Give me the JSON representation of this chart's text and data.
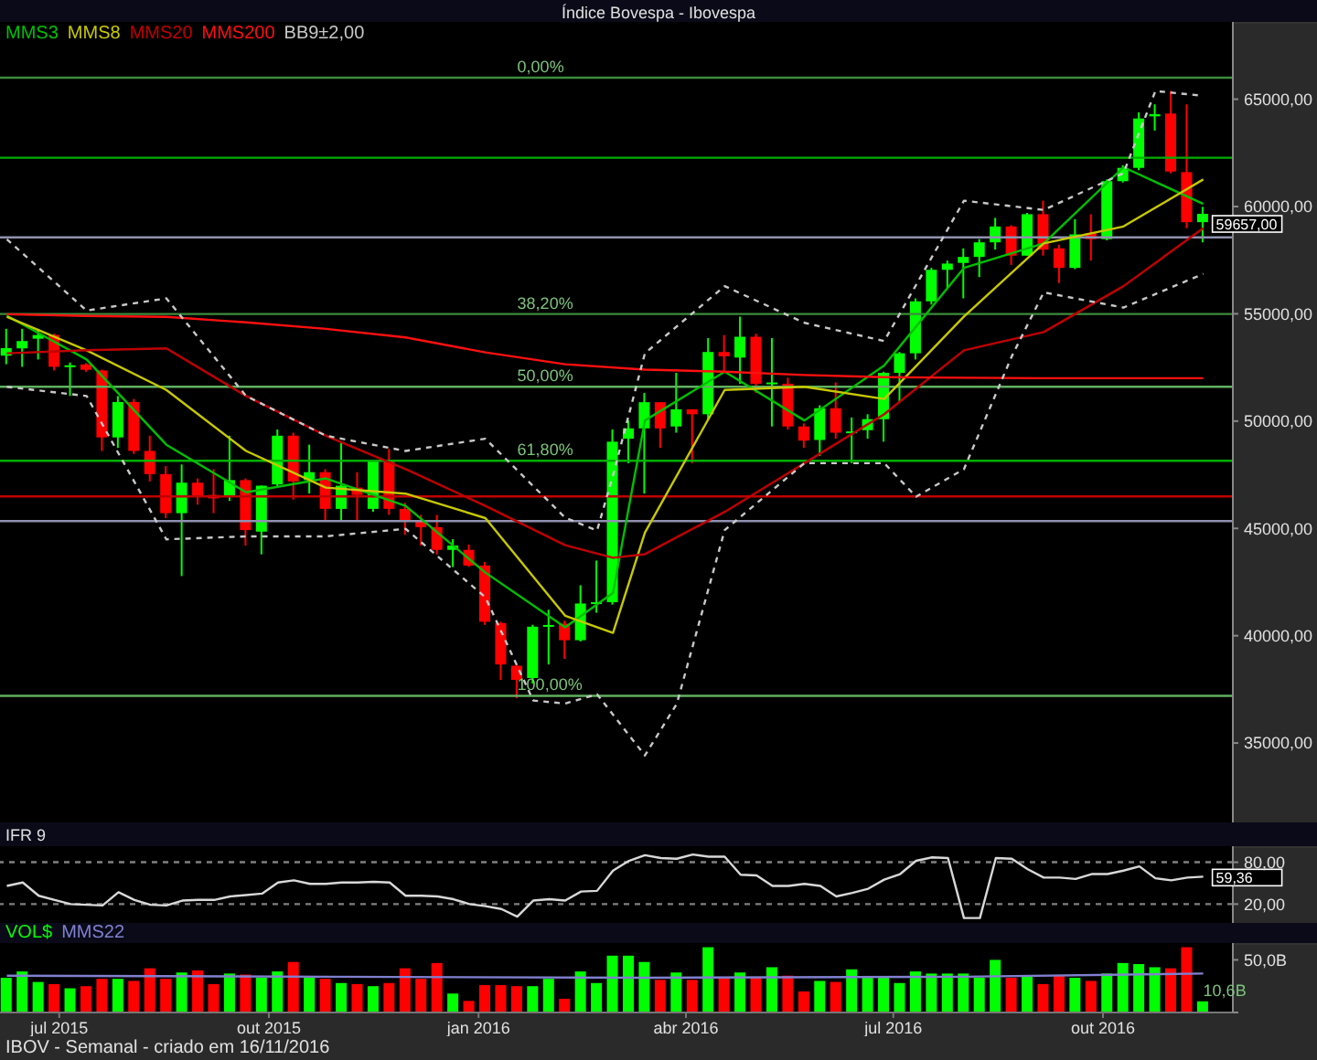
{
  "chart_data": [
    {
      "type": "candlestick",
      "title": "Índice Bovespa - Ibovespa",
      "x": [
        "2015-06-08",
        "2015-06-15",
        "2015-06-22",
        "2015-06-29",
        "2015-07-06",
        "2015-07-13",
        "2015-07-20",
        "2015-07-27",
        "2015-08-03",
        "2015-08-10",
        "2015-08-17",
        "2015-08-24",
        "2015-08-31",
        "2015-09-07",
        "2015-09-14",
        "2015-09-21",
        "2015-09-28",
        "2015-10-05",
        "2015-10-12",
        "2015-10-19",
        "2015-10-26",
        "2015-11-02",
        "2015-11-09",
        "2015-11-16",
        "2015-11-23",
        "2015-11-30",
        "2015-12-07",
        "2015-12-14",
        "2015-12-21",
        "2015-12-28",
        "2016-01-04",
        "2016-01-11",
        "2016-01-18",
        "2016-01-25",
        "2016-02-01",
        "2016-02-08",
        "2016-02-15",
        "2016-02-22",
        "2016-02-29",
        "2016-03-07",
        "2016-03-14",
        "2016-03-21",
        "2016-03-28",
        "2016-04-04",
        "2016-04-11",
        "2016-04-18",
        "2016-04-25",
        "2016-05-02",
        "2016-05-09",
        "2016-05-16",
        "2016-05-23",
        "2016-05-30",
        "2016-06-06",
        "2016-06-13",
        "2016-06-20",
        "2016-06-27",
        "2016-07-04",
        "2016-07-11",
        "2016-07-18",
        "2016-07-25",
        "2016-08-01",
        "2016-08-08",
        "2016-08-15",
        "2016-08-22",
        "2016-08-29",
        "2016-09-05",
        "2016-09-12",
        "2016-09-19",
        "2016-09-26",
        "2016-10-03",
        "2016-10-10",
        "2016-10-17",
        "2016-10-24",
        "2016-10-31",
        "2016-11-07",
        "2016-11-14"
      ],
      "ohlc": [
        [
          53050,
          54300,
          52650,
          53400
        ],
        [
          53390,
          54300,
          52530,
          53730
        ],
        [
          53840,
          54300,
          52870,
          54010
        ],
        [
          54010,
          54070,
          52360,
          52530
        ],
        [
          52560,
          52730,
          51170,
          52600
        ],
        [
          52640,
          52700,
          52300,
          52390
        ],
        [
          52360,
          52400,
          48610,
          49240
        ],
        [
          49240,
          51170,
          48750,
          50890
        ],
        [
          50890,
          51030,
          48470,
          48610
        ],
        [
          48610,
          49320,
          47190,
          47530
        ],
        [
          47530,
          47900,
          45480,
          45710
        ],
        [
          45710,
          47980,
          42780,
          47130
        ],
        [
          47130,
          47330,
          46110,
          46480
        ],
        [
          46560,
          47760,
          45710,
          46400
        ],
        [
          46480,
          49320,
          46280,
          47250
        ],
        [
          47250,
          47330,
          44200,
          44920
        ],
        [
          44850,
          47000,
          43790,
          46990
        ],
        [
          47050,
          49610,
          46900,
          49320
        ],
        [
          49320,
          49460,
          46340,
          47190
        ],
        [
          47250,
          48900,
          46620,
          47620
        ],
        [
          47620,
          47760,
          45340,
          45910
        ],
        [
          45910,
          49040,
          45340,
          46990
        ],
        [
          46900,
          47620,
          45340,
          46560
        ],
        [
          45910,
          48180,
          45770,
          48130
        ],
        [
          48130,
          48700,
          45630,
          45910
        ],
        [
          45910,
          46190,
          44700,
          45340
        ],
        [
          45340,
          45630,
          44200,
          45060
        ],
        [
          45060,
          45630,
          43790,
          44000
        ],
        [
          44000,
          44500,
          43200,
          44200
        ],
        [
          44000,
          44250,
          43210,
          43270
        ],
        [
          43270,
          43440,
          40510,
          40650
        ],
        [
          40590,
          40650,
          37940,
          38660
        ],
        [
          38600,
          38660,
          37090,
          37940
        ],
        [
          38030,
          40510,
          37770,
          40420
        ],
        [
          40420,
          41210,
          38660,
          40500
        ],
        [
          40560,
          40700,
          38920,
          39790
        ],
        [
          39790,
          42350,
          39730,
          41500
        ],
        [
          41500,
          43500,
          41070,
          41560
        ],
        [
          41560,
          49610,
          41450,
          49040
        ],
        [
          49180,
          50030,
          48040,
          49660
        ],
        [
          49660,
          51310,
          46620,
          50880
        ],
        [
          50880,
          50880,
          48750,
          49660
        ],
        [
          49750,
          52250,
          49460,
          50550
        ],
        [
          50550,
          50550,
          48040,
          50320
        ],
        [
          50320,
          53870,
          50030,
          53220
        ],
        [
          53220,
          54010,
          52310,
          53020
        ],
        [
          52960,
          54870,
          51740,
          53930
        ],
        [
          53930,
          54070,
          51310,
          51740
        ],
        [
          51740,
          53870,
          49750,
          51800
        ],
        [
          51740,
          52020,
          49610,
          49750
        ],
        [
          49750,
          49890,
          48750,
          49090
        ],
        [
          49120,
          50740,
          48380,
          50600
        ],
        [
          50600,
          51800,
          49180,
          49460
        ],
        [
          49470,
          50170,
          48040,
          49520
        ],
        [
          49580,
          50320,
          49180,
          50090
        ],
        [
          50090,
          52300,
          49040,
          52250
        ],
        [
          52250,
          53220,
          50880,
          53160
        ],
        [
          53160,
          55720,
          52870,
          55580
        ],
        [
          55580,
          57140,
          55430,
          57050
        ],
        [
          57050,
          57480,
          56150,
          57340
        ],
        [
          57370,
          58050,
          55720,
          57650
        ],
        [
          57650,
          58480,
          56710,
          58330
        ],
        [
          58330,
          59470,
          57990,
          59070
        ],
        [
          59070,
          59130,
          57280,
          57710
        ],
        [
          57710,
          59700,
          57710,
          59640
        ],
        [
          59640,
          60270,
          57710,
          57990
        ],
        [
          58050,
          58220,
          56430,
          57140
        ],
        [
          57140,
          59410,
          57080,
          58700
        ],
        [
          58760,
          59640,
          57480,
          58480
        ],
        [
          58480,
          61260,
          58420,
          61180
        ],
        [
          61180,
          61920,
          61120,
          61800
        ],
        [
          61800,
          64390,
          61690,
          64100
        ],
        [
          64200,
          64760,
          63540,
          64300
        ],
        [
          64330,
          65380,
          61550,
          61630
        ],
        [
          61600,
          64760,
          58990,
          59270
        ],
        [
          59270,
          59980,
          58330,
          59657
        ]
      ],
      "colors": [
        "#00ff00",
        "#00ff00",
        "#00ff00",
        "#ff0000",
        "#00ff00",
        "#ff0000",
        "#ff0000",
        "#00ff00",
        "#ff0000",
        "#ff0000",
        "#ff0000",
        "#00ff00",
        "#ff0000",
        "#ff0000",
        "#00ff00",
        "#ff0000",
        "#00ff00",
        "#00ff00",
        "#ff0000",
        "#00ff00",
        "#ff0000",
        "#00ff00",
        "#ff0000",
        "#00ff00",
        "#ff0000",
        "#ff0000",
        "#ff0000",
        "#ff0000",
        "#00ff00",
        "#ff0000",
        "#ff0000",
        "#ff0000",
        "#ff0000",
        "#00ff00",
        "#00ff00",
        "#ff0000",
        "#00ff00",
        "#00ff00",
        "#00ff00",
        "#00ff00",
        "#00ff00",
        "#ff0000",
        "#00ff00",
        "#ff0000",
        "#00ff00",
        "#ff0000",
        "#00ff00",
        "#ff0000",
        "#00ff00",
        "#ff0000",
        "#ff0000",
        "#00ff00",
        "#ff0000",
        "#00ff00",
        "#00ff00",
        "#00ff00",
        "#00ff00",
        "#00ff00",
        "#00ff00",
        "#00ff00",
        "#00ff00",
        "#00ff00",
        "#00ff00",
        "#ff0000",
        "#00ff00",
        "#ff0000",
        "#ff0000",
        "#00ff00",
        "#ff0000",
        "#00ff00",
        "#00ff00",
        "#00ff00",
        "#00ff00",
        "#ff0000",
        "#ff0000",
        "#00ff00"
      ],
      "series": [
        {
          "type": "line",
          "name": "MMS3",
          "color": "#00c000",
          "x": [
            "2015-06-08",
            "2015-07-13",
            "2015-08-17",
            "2015-09-21",
            "2015-10-26",
            "2015-11-30",
            "2016-01-04",
            "2016-02-08",
            "2016-02-29",
            "2016-03-14",
            "2016-04-18",
            "2016-05-23",
            "2016-06-27",
            "2016-08-01",
            "2016-09-05",
            "2016-10-10",
            "2016-11-14"
          ],
          "values": [
            54910,
            52870,
            48900,
            46680,
            47330,
            46050,
            42940,
            40390,
            42000,
            50030,
            52300,
            50030,
            52590,
            57140,
            58280,
            61830,
            60120
          ]
        },
        {
          "type": "line",
          "name": "MMS8",
          "color": "#c8c800",
          "x": [
            "2015-06-08",
            "2015-07-13",
            "2015-08-17",
            "2015-09-21",
            "2015-10-26",
            "2015-11-30",
            "2016-01-04",
            "2016-02-08",
            "2016-02-29",
            "2016-03-14",
            "2016-04-18",
            "2016-05-23",
            "2016-06-27",
            "2016-08-01",
            "2016-09-05",
            "2016-10-10",
            "2016-11-14"
          ],
          "values": [
            54860,
            53300,
            51450,
            48610,
            46900,
            46620,
            45480,
            40930,
            40130,
            44800,
            51450,
            51600,
            51030,
            54870,
            58280,
            59070,
            61260
          ]
        },
        {
          "type": "line",
          "name": "MMS20",
          "color": "#c00000",
          "x": [
            "2015-06-08",
            "2015-07-13",
            "2015-08-17",
            "2015-09-21",
            "2015-10-26",
            "2015-11-30",
            "2016-01-04",
            "2016-02-08",
            "2016-02-29",
            "2016-03-14",
            "2016-04-18",
            "2016-05-23",
            "2016-06-27",
            "2016-08-01",
            "2016-09-05",
            "2016-10-10",
            "2016-11-14"
          ],
          "values": [
            53160,
            53300,
            53390,
            51170,
            49320,
            47760,
            46050,
            44220,
            43630,
            43800,
            45770,
            48040,
            50320,
            53300,
            54150,
            56290,
            58990
          ]
        },
        {
          "type": "line",
          "name": "MMS200",
          "color": "#ff1010",
          "x": [
            "2015-06-08",
            "2015-07-13",
            "2015-08-17",
            "2015-09-21",
            "2015-10-26",
            "2015-11-30",
            "2016-01-04",
            "2016-02-08",
            "2016-03-14",
            "2016-04-18",
            "2016-05-23",
            "2016-06-27",
            "2016-08-01",
            "2016-09-05",
            "2016-10-10",
            "2016-11-14"
          ],
          "values": [
            54980,
            54900,
            54860,
            54600,
            54300,
            53900,
            53200,
            52650,
            52400,
            52300,
            52150,
            52050,
            52020,
            52000,
            52000,
            52000
          ]
        },
        {
          "type": "line",
          "name": "BB9±2,00",
          "color": "#c8c8c8",
          "line_style": "dashed",
          "x": [
            "2015-06-08",
            "2015-07-13",
            "2015-08-17",
            "2015-09-21",
            "2015-10-26",
            "2015-11-30",
            "2016-01-04",
            "2016-02-08",
            "2016-02-22",
            "2016-02-29",
            "2016-03-14",
            "2016-04-18",
            "2016-05-23",
            "2016-06-27",
            "2016-08-01",
            "2016-09-05",
            "2016-10-10",
            "2016-10-24",
            "2016-11-14"
          ],
          "values": [
            58470,
            55150,
            55720,
            51170,
            49320,
            48610,
            49180,
            45500,
            44900,
            47470,
            53160,
            56290,
            54580,
            53730,
            60270,
            59840,
            61550,
            65380,
            65160
          ]
        },
        {
          "type": "line",
          "color": "#c8c8c8",
          "line_style": "dashed",
          "x": [
            "2015-06-08",
            "2015-07-13",
            "2015-08-17",
            "2015-09-21",
            "2015-10-26",
            "2015-11-30",
            "2016-01-04",
            "2016-01-25",
            "2016-02-08",
            "2016-02-22",
            "2016-03-14",
            "2016-03-28",
            "2016-04-18",
            "2016-05-23",
            "2016-06-27",
            "2016-07-11",
            "2016-08-01",
            "2016-08-22",
            "2016-09-05",
            "2016-10-10",
            "2016-11-14"
          ],
          "values": [
            51600,
            51170,
            44490,
            44630,
            44630,
            44980,
            41790,
            36980,
            36840,
            37270,
            34420,
            36830,
            44920,
            48040,
            48040,
            46480,
            47760,
            53020,
            56000,
            55290,
            56860
          ]
        }
      ],
      "xlim": [
        "2015-06-05",
        "2016-11-27"
      ],
      "ylim": [
        31300,
        68600
      ],
      "yticks": [
        {
          "value": 35000,
          "label": "35000,00"
        },
        {
          "value": 40000,
          "label": "40000,00"
        },
        {
          "value": 45000,
          "label": "45000,00"
        },
        {
          "value": 50000,
          "label": "50000,00"
        },
        {
          "value": 55000,
          "label": "55000,00"
        },
        {
          "value": 60000,
          "label": "60000,00"
        },
        {
          "value": 65000,
          "label": "65000,00"
        }
      ],
      "tick_labels": "y",
      "legend": "top left",
      "ref_lines": [
        {
          "axis": "y",
          "value": 66000,
          "label": null,
          "color": "#3c8c3c"
        },
        {
          "axis": "y",
          "value": 62270,
          "label": null,
          "color": "#00b000"
        },
        {
          "axis": "y",
          "value": 58560,
          "label": null,
          "color": "#9090b0"
        },
        {
          "axis": "y",
          "value": 54990,
          "label": null,
          "color": "#3c8c3c"
        },
        {
          "axis": "y",
          "value": 51600,
          "label": null,
          "color": "#60b060"
        },
        {
          "axis": "y",
          "value": 48150,
          "label": null,
          "color": "#00b000"
        },
        {
          "axis": "y",
          "value": 46490,
          "label": null,
          "color": "#c00000"
        },
        {
          "axis": "y",
          "value": 45340,
          "label": null,
          "color": "#9090b0"
        },
        {
          "axis": "y",
          "value": 37200,
          "label": null,
          "color": "#60b060"
        }
      ],
      "value_labels": [
        null,
        null,
        null,
        null,
        null,
        null,
        null,
        null,
        null,
        null,
        null,
        null,
        null,
        null,
        null,
        null,
        null,
        null,
        null,
        null,
        null,
        null,
        null,
        null,
        null,
        null,
        null,
        null,
        null,
        null,
        null,
        null,
        null,
        null,
        null,
        null,
        null,
        null,
        null,
        null,
        null,
        null,
        null,
        null,
        null,
        null,
        null,
        null,
        null,
        null,
        null,
        null,
        null,
        null,
        null,
        null,
        null,
        null,
        null,
        null,
        null,
        null,
        null,
        null,
        null,
        null,
        null,
        null,
        null,
        null,
        null,
        null,
        null,
        null,
        null,
        "59657,00"
      ],
      "annotations": [
        {
          "text": "0,00%",
          "x": "2016-01-18",
          "y": 66000
        },
        {
          "text": "38,20%",
          "x": "2016-01-18",
          "y": 54990
        },
        {
          "text": "50,00%",
          "x": "2016-01-18",
          "y": 51600
        },
        {
          "text": "61,80%",
          "x": "2016-01-18",
          "y": 48150
        },
        {
          "text": "100,00%",
          "x": "2016-01-18",
          "y": 37200
        }
      ]
    },
    {
      "type": "line",
      "title": "IFR 9",
      "x": [
        "2015-06-08",
        "2015-06-15",
        "2015-06-22",
        "2015-06-29",
        "2015-07-06",
        "2015-07-13",
        "2015-07-20",
        "2015-07-27",
        "2015-08-03",
        "2015-08-10",
        "2015-08-17",
        "2015-08-24",
        "2015-08-31",
        "2015-09-07",
        "2015-09-14",
        "2015-09-21",
        "2015-09-28",
        "2015-10-05",
        "2015-10-12",
        "2015-10-19",
        "2015-10-26",
        "2015-11-02",
        "2015-11-09",
        "2015-11-16",
        "2015-11-23",
        "2015-11-30",
        "2015-12-07",
        "2015-12-14",
        "2015-12-21",
        "2015-12-28",
        "2016-01-04",
        "2016-01-11",
        "2016-01-18",
        "2016-01-25",
        "2016-02-01",
        "2016-02-08",
        "2016-02-15",
        "2016-02-22",
        "2016-02-29",
        "2016-03-07",
        "2016-03-14",
        "2016-03-21",
        "2016-03-28",
        "2016-04-04",
        "2016-04-11",
        "2016-04-18",
        "2016-04-25",
        "2016-05-02",
        "2016-05-09",
        "2016-05-16",
        "2016-05-23",
        "2016-05-30",
        "2016-06-06",
        "2016-06-13",
        "2016-06-20",
        "2016-06-27",
        "2016-07-04",
        "2016-07-11",
        "2016-07-18",
        "2016-07-25",
        "2016-08-01",
        "2016-08-08",
        "2016-08-15",
        "2016-08-22",
        "2016-08-29",
        "2016-09-05",
        "2016-09-12",
        "2016-09-19",
        "2016-09-26",
        "2016-10-03",
        "2016-10-10",
        "2016-10-17",
        "2016-10-24",
        "2016-10-31",
        "2016-11-07",
        "2016-11-14"
      ],
      "series": [
        {
          "color": "#d8d8d8",
          "value_labels": [
            null,
            null,
            null,
            null,
            null,
            null,
            null,
            null,
            null,
            null,
            null,
            null,
            null,
            null,
            null,
            null,
            null,
            null,
            null,
            null,
            null,
            null,
            null,
            null,
            null,
            null,
            null,
            null,
            null,
            null,
            null,
            null,
            null,
            null,
            null,
            null,
            null,
            null,
            null,
            null,
            null,
            null,
            null,
            null,
            null,
            null,
            null,
            null,
            null,
            null,
            null,
            null,
            null,
            null,
            null,
            null,
            null,
            null,
            null,
            null,
            null,
            null,
            null,
            null,
            null,
            null,
            null,
            null,
            null,
            null,
            null,
            null,
            null,
            null,
            null,
            "59,36"
          ],
          "values": [
            46,
            51,
            32,
            26,
            20,
            19,
            18,
            37,
            26,
            19,
            18,
            25,
            26,
            26,
            31,
            33,
            35,
            51,
            54,
            49,
            49,
            51,
            51,
            52,
            51,
            32,
            32,
            31,
            27,
            20,
            17,
            13,
            2,
            25,
            27,
            25,
            38,
            39,
            68,
            82,
            90,
            86,
            85,
            91,
            88,
            88,
            62,
            61,
            46,
            46,
            49,
            46,
            31,
            36,
            42,
            55,
            63,
            82,
            87,
            86,
            0,
            0,
            86,
            85,
            70,
            58,
            58,
            56,
            63,
            63,
            68,
            74,
            57,
            54,
            58,
            59.36
          ]
        }
      ],
      "xlim": [
        "2015-06-05",
        "2016-11-27"
      ],
      "ylim": [
        -7,
        103
      ],
      "yticks": [
        {
          "value": 80,
          "label": "80,00"
        },
        {
          "value": 20,
          "label": "20,00"
        }
      ],
      "tick_labels": "y",
      "ref_lines": [
        {
          "axis": "y",
          "value": 80,
          "label": null,
          "color": "#808080",
          "line_style": "dashed"
        },
        {
          "axis": "y",
          "value": 20,
          "label": null,
          "color": "#808080",
          "line_style": "dashed"
        }
      ]
    },
    {
      "type": "bar",
      "x": [
        "2015-06-08",
        "2015-06-15",
        "2015-06-22",
        "2015-06-29",
        "2015-07-06",
        "2015-07-13",
        "2015-07-20",
        "2015-07-27",
        "2015-08-03",
        "2015-08-10",
        "2015-08-17",
        "2015-08-24",
        "2015-08-31",
        "2015-09-07",
        "2015-09-14",
        "2015-09-21",
        "2015-09-28",
        "2015-10-05",
        "2015-10-12",
        "2015-10-19",
        "2015-10-26",
        "2015-11-02",
        "2015-11-09",
        "2015-11-16",
        "2015-11-23",
        "2015-11-30",
        "2015-12-07",
        "2015-12-14",
        "2015-12-21",
        "2015-12-28",
        "2016-01-04",
        "2016-01-11",
        "2016-01-18",
        "2016-01-25",
        "2016-02-01",
        "2016-02-08",
        "2016-02-15",
        "2016-02-22",
        "2016-02-29",
        "2016-03-07",
        "2016-03-14",
        "2016-03-21",
        "2016-03-28",
        "2016-04-04",
        "2016-04-11",
        "2016-04-18",
        "2016-04-25",
        "2016-05-02",
        "2016-05-09",
        "2016-05-16",
        "2016-05-23",
        "2016-05-30",
        "2016-06-06",
        "2016-06-13",
        "2016-06-20",
        "2016-06-27",
        "2016-07-04",
        "2016-07-11",
        "2016-07-18",
        "2016-07-25",
        "2016-08-01",
        "2016-08-08",
        "2016-08-15",
        "2016-08-22",
        "2016-08-29",
        "2016-09-05",
        "2016-09-12",
        "2016-09-19",
        "2016-09-26",
        "2016-10-03",
        "2016-10-10",
        "2016-10-17",
        "2016-10-24",
        "2016-10-31",
        "2016-11-07",
        "2016-11-14"
      ],
      "series": [
        {
          "name": "VOL$",
          "colors": [
            "#00ff00",
            "#00ff00",
            "#00ff00",
            "#ff0000",
            "#00ff00",
            "#ff0000",
            "#ff0000",
            "#00ff00",
            "#ff0000",
            "#ff0000",
            "#ff0000",
            "#00ff00",
            "#ff0000",
            "#ff0000",
            "#00ff00",
            "#ff0000",
            "#00ff00",
            "#00ff00",
            "#ff0000",
            "#00ff00",
            "#ff0000",
            "#00ff00",
            "#ff0000",
            "#00ff00",
            "#ff0000",
            "#ff0000",
            "#ff0000",
            "#ff0000",
            "#00ff00",
            "#ff0000",
            "#ff0000",
            "#ff0000",
            "#ff0000",
            "#00ff00",
            "#00ff00",
            "#ff0000",
            "#00ff00",
            "#00ff00",
            "#00ff00",
            "#00ff00",
            "#00ff00",
            "#ff0000",
            "#00ff00",
            "#ff0000",
            "#00ff00",
            "#ff0000",
            "#00ff00",
            "#ff0000",
            "#00ff00",
            "#ff0000",
            "#ff0000",
            "#00ff00",
            "#ff0000",
            "#00ff00",
            "#00ff00",
            "#00ff00",
            "#00ff00",
            "#00ff00",
            "#00ff00",
            "#00ff00",
            "#00ff00",
            "#00ff00",
            "#00ff00",
            "#ff0000",
            "#00ff00",
            "#ff0000",
            "#ff0000",
            "#00ff00",
            "#ff0000",
            "#00ff00",
            "#00ff00",
            "#00ff00",
            "#00ff00",
            "#ff0000",
            "#ff0000",
            "#00ff00"
          ],
          "values": [
            33,
            39,
            29,
            27,
            23,
            25,
            32,
            32,
            30,
            42,
            32,
            38,
            40,
            27,
            37,
            36,
            33,
            39,
            48,
            33,
            32,
            28,
            27,
            25,
            28,
            42,
            32,
            47,
            18,
            11,
            26,
            26,
            25,
            25,
            32,
            13,
            39,
            28,
            54,
            54,
            48,
            31,
            38,
            31,
            62,
            33,
            38,
            33,
            43,
            35,
            20,
            30,
            29,
            41,
            34,
            34,
            28,
            39,
            37,
            37,
            37,
            33,
            50,
            33,
            35,
            27,
            35,
            33,
            30,
            37,
            47,
            46,
            43,
            42,
            62,
            10.6
          ]
        },
        {
          "type": "line",
          "name": "MMS22",
          "color": "#8080d0",
          "x": [
            "2015-06-08",
            "2015-10-26",
            "2016-03-14",
            "2016-08-01",
            "2016-11-14"
          ],
          "values": [
            35,
            34,
            33,
            34,
            37
          ]
        }
      ],
      "xlim": [
        "2015-06-05",
        "2016-11-27"
      ],
      "ylim": [
        0,
        66
      ],
      "yticks": [
        {
          "value": 0,
          "label": null
        },
        {
          "value": 50,
          "label": "50,0B"
        }
      ],
      "xticks": [
        {
          "value": "2015-07-01",
          "label": "jul 2015"
        },
        {
          "value": "2015-10-01",
          "label": "out 2015"
        },
        {
          "value": "2016-01-01",
          "label": "jan 2016"
        },
        {
          "value": "2016-04-01",
          "label": "abr 2016"
        },
        {
          "value": "2016-07-01",
          "label": "jul 2016"
        },
        {
          "value": "2016-10-01",
          "label": "out 2016"
        }
      ],
      "legend": "top left",
      "annotations": [
        {
          "text": "10,6B",
          "x": "2016-11-14",
          "y": 10.6
        },
        "IBOV - Semanal - criado em 16/11/2016"
      ]
    }
  ]
}
